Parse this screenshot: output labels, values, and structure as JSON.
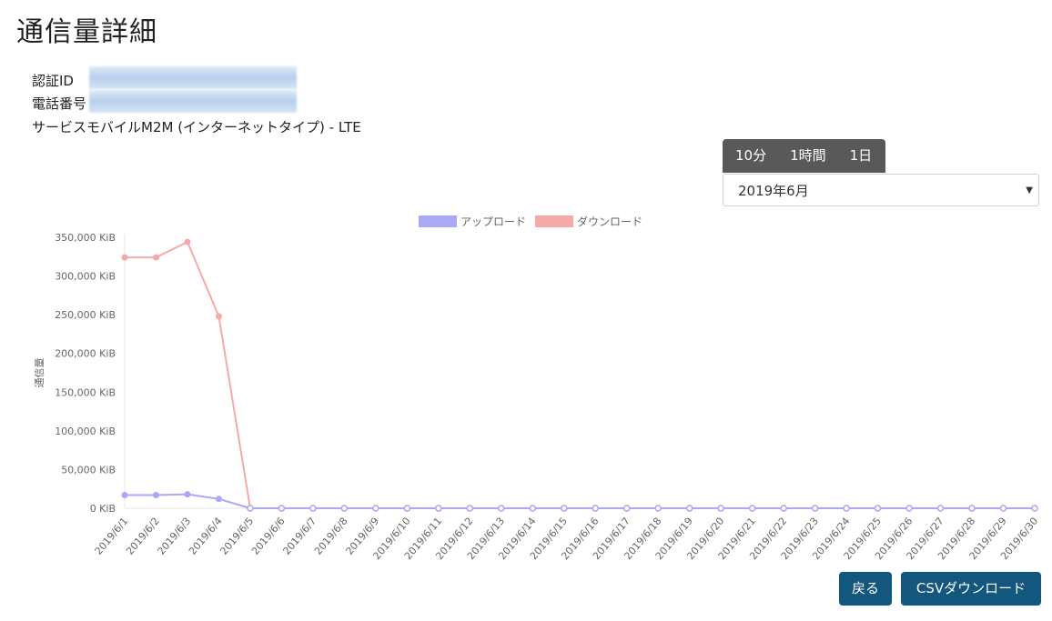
{
  "page": {
    "title": "通信量詳細",
    "auth_label": "認証ID",
    "phone_label": "電話番号",
    "service": "サービスモバイルM2M (インターネットタイプ) - LTE"
  },
  "period_tabs": [
    "10分",
    "1時間",
    "1日"
  ],
  "month_select": {
    "value": "2019年6月"
  },
  "buttons": {
    "back": "戻る",
    "csv": "CSVダウンロード"
  },
  "chart_data": {
    "type": "line",
    "ylabel": "通信量",
    "ylim": [
      0,
      350000
    ],
    "yticks": [
      "0 KiB",
      "50,000 KiB",
      "100,000 KiB",
      "150,000 KiB",
      "200,000 KiB",
      "250,000 KiB",
      "300,000 KiB",
      "350,000 KiB"
    ],
    "categories": [
      "2019/6/1",
      "2019/6/2",
      "2019/6/3",
      "2019/6/4",
      "2019/6/5",
      "2019/6/6",
      "2019/6/7",
      "2019/6/8",
      "2019/6/9",
      "2019/6/10",
      "2019/6/11",
      "2019/6/12",
      "2019/6/13",
      "2019/6/14",
      "2019/6/15",
      "2019/6/16",
      "2019/6/17",
      "2019/6/18",
      "2019/6/19",
      "2019/6/20",
      "2019/6/21",
      "2019/6/22",
      "2019/6/23",
      "2019/6/24",
      "2019/6/25",
      "2019/6/26",
      "2019/6/27",
      "2019/6/28",
      "2019/6/29",
      "2019/6/30"
    ],
    "series": [
      {
        "name": "アップロード",
        "color": "#a9a9f5",
        "values": [
          17000,
          17000,
          18000,
          12000,
          0,
          0,
          0,
          0,
          0,
          0,
          0,
          0,
          0,
          0,
          0,
          0,
          0,
          0,
          0,
          0,
          0,
          0,
          0,
          0,
          0,
          0,
          0,
          0,
          0,
          0
        ]
      },
      {
        "name": "ダウンロード",
        "color": "#f5a9a9",
        "values": [
          324000,
          324000,
          344000,
          248000,
          0,
          0,
          0,
          0,
          0,
          0,
          0,
          0,
          0,
          0,
          0,
          0,
          0,
          0,
          0,
          0,
          0,
          0,
          0,
          0,
          0,
          0,
          0,
          0,
          0,
          0
        ]
      }
    ],
    "legend_position": "top-center"
  }
}
